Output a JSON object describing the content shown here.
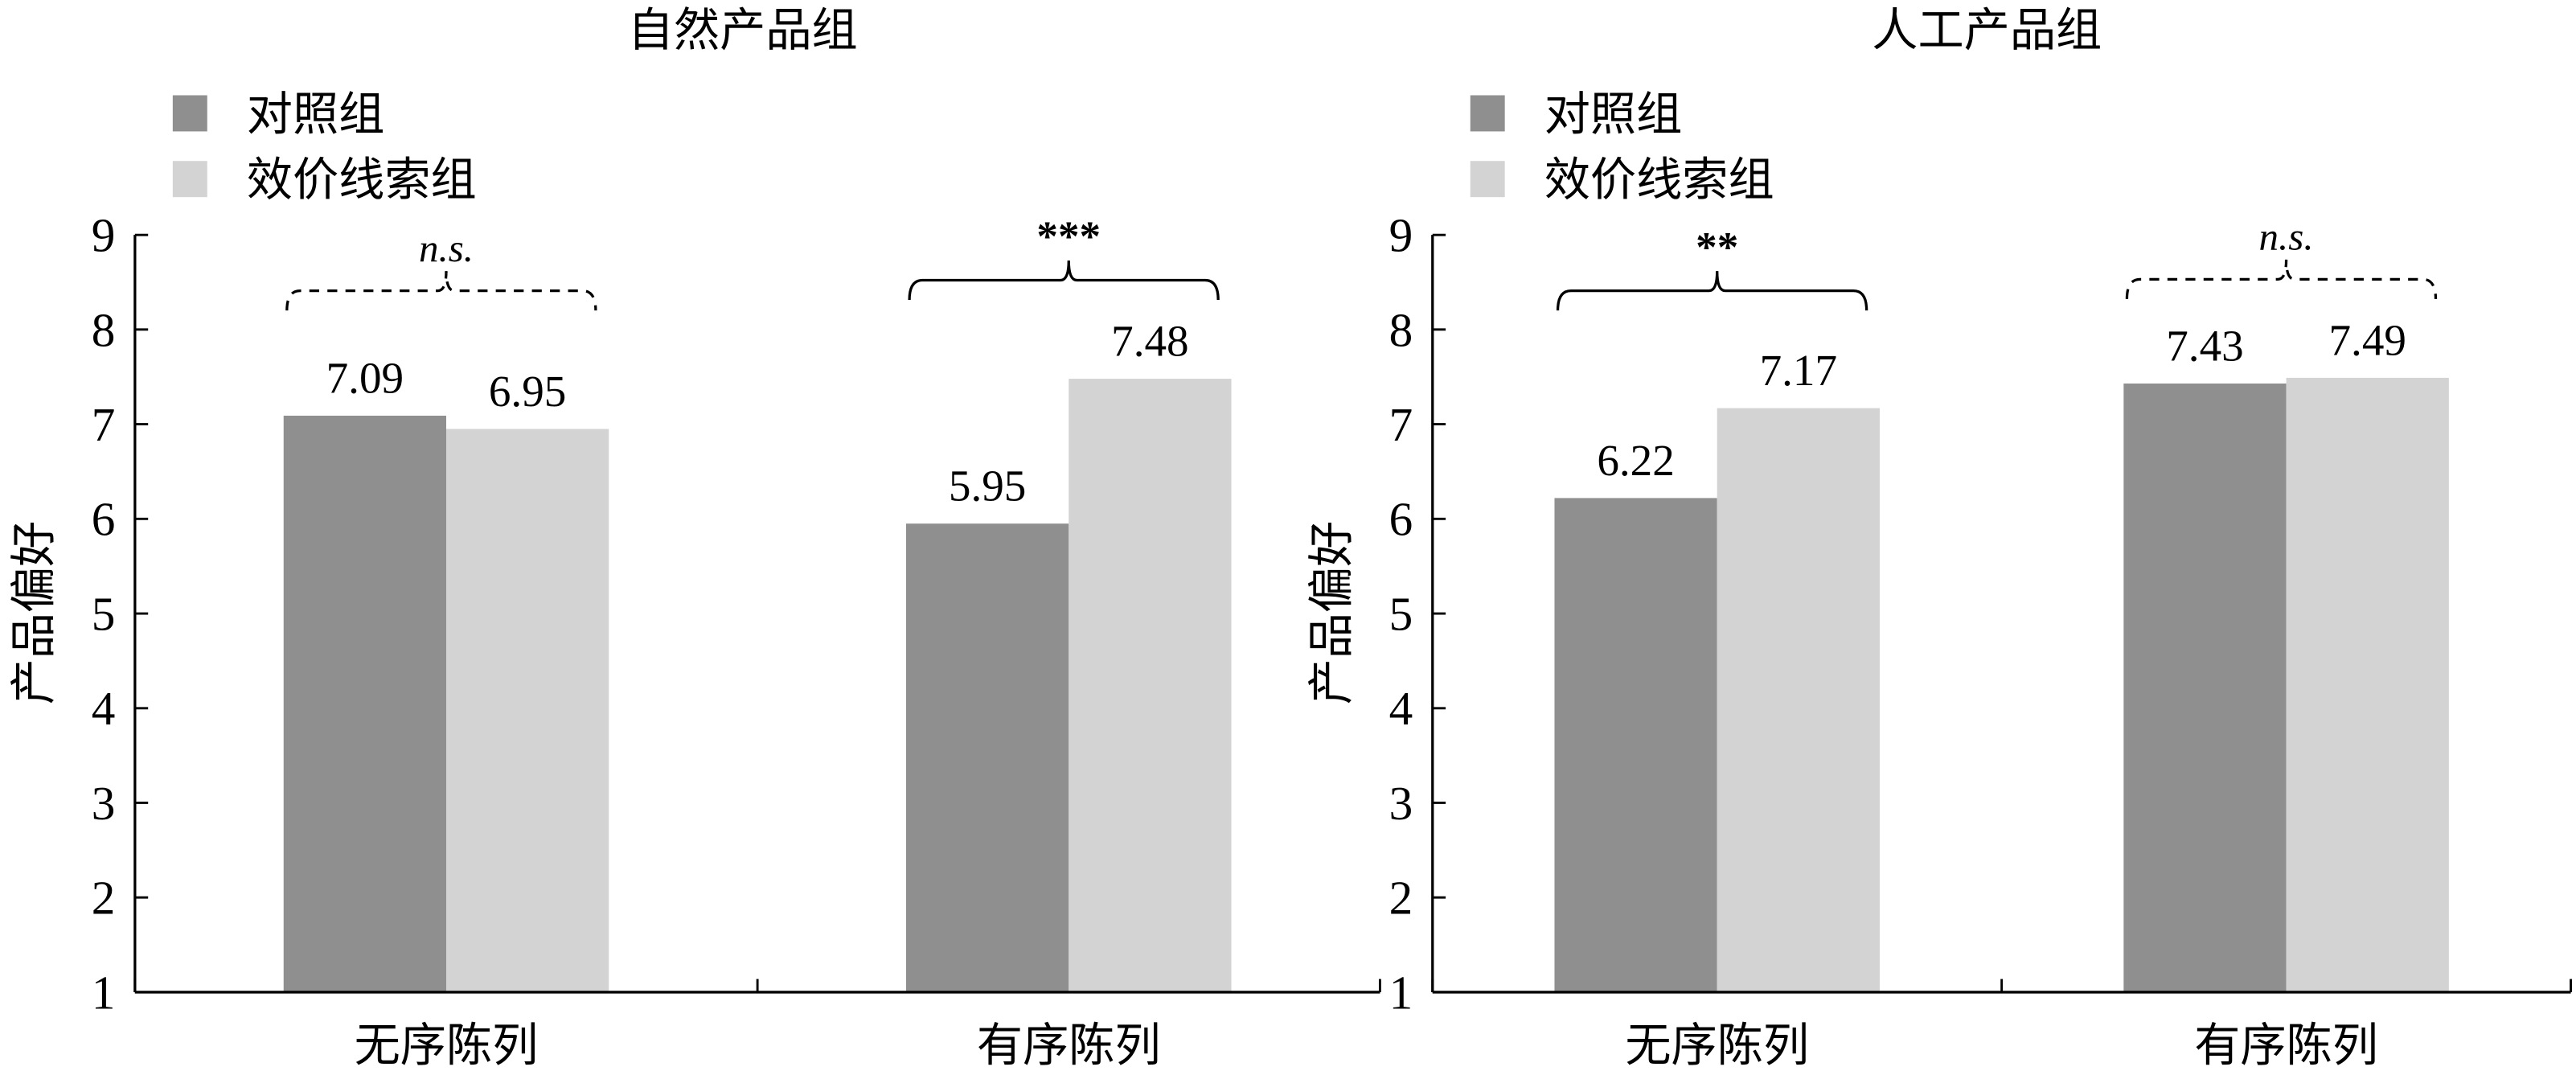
{
  "chart_data": [
    {
      "type": "bar",
      "title": "自然产品组",
      "ylabel": "产品偏好",
      "xlabel": "",
      "ylim": [
        1,
        9
      ],
      "yticks": [
        "1",
        "2",
        "3",
        "4",
        "5",
        "6",
        "7",
        "8",
        "9"
      ],
      "categories": [
        "无序陈列",
        "有序陈列"
      ],
      "legend_position": "top-left",
      "series": [
        {
          "name": "对照组",
          "values": [
            7.09,
            5.95
          ],
          "labels": [
            "7.09",
            "5.95"
          ],
          "color": "#8f8f8f"
        },
        {
          "name": "效价线索组",
          "values": [
            6.95,
            7.48
          ],
          "labels": [
            "6.95",
            "7.48"
          ],
          "color": "#d3d3d3"
        }
      ],
      "significance": [
        {
          "category": "无序陈列",
          "label": "n.s.",
          "style": "dashed"
        },
        {
          "category": "有序陈列",
          "label": "***",
          "style": "solid"
        }
      ]
    },
    {
      "type": "bar",
      "title": "人工产品组",
      "ylabel": "产品偏好",
      "xlabel": "",
      "ylim": [
        1,
        9
      ],
      "yticks": [
        "1",
        "2",
        "3",
        "4",
        "5",
        "6",
        "7",
        "8",
        "9"
      ],
      "categories": [
        "无序陈列",
        "有序陈列"
      ],
      "legend_position": "top-left",
      "series": [
        {
          "name": "对照组",
          "values": [
            6.22,
            7.43
          ],
          "labels": [
            "6.22",
            "7.43"
          ],
          "color": "#8f8f8f"
        },
        {
          "name": "效价线索组",
          "values": [
            7.17,
            7.49
          ],
          "labels": [
            "7.17",
            "7.49"
          ],
          "color": "#d3d3d3"
        }
      ],
      "significance": [
        {
          "category": "无序陈列",
          "label": "**",
          "style": "solid"
        },
        {
          "category": "有序陈列",
          "label": "n.s.",
          "style": "dashed"
        }
      ]
    }
  ]
}
